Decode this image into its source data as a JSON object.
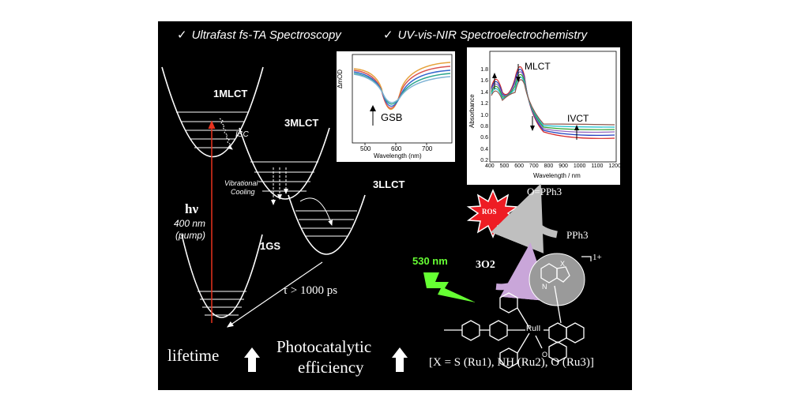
{
  "headers": {
    "check_glyph": "✓",
    "left": "Ultrafast fs-TA Spectroscopy",
    "right": "UV-vis-NIR Spectroelectrochemistry"
  },
  "states": {
    "s1": "1MLCT",
    "t1": "3MLCT",
    "t2": "3LLCT",
    "gs": "1GS"
  },
  "annotations": {
    "isc": "ISC",
    "vib": "Vibrational",
    "cooling": "Cooling",
    "hv": "hν",
    "pump1": "400 nm",
    "pump2": "(pump)",
    "tau": "τ > 1000 ps"
  },
  "bottom": {
    "lifetime": "lifetime",
    "photo1": "Photocatalytic",
    "photo2": "efficiency",
    "formula": "[X = S (Ru1), NH (Ru2), O (Ru3)]"
  },
  "ta_plot": {
    "ylabel": "ΔmOD",
    "xlabel": "Wavelength (nm)",
    "ticks": [
      "500",
      "600",
      "700"
    ],
    "gsb": "GSB"
  },
  "sec_plot": {
    "ylabel": "Absorbance",
    "xlabel": "Wavelength / nm",
    "yticks": [
      "1.8",
      "1.6",
      "1.4",
      "1.2",
      "1.0",
      "0.8",
      "0.6",
      "0.4",
      "0.2"
    ],
    "xticks": [
      "400",
      "500",
      "600",
      "700",
      "800",
      "900",
      "1000",
      "1100",
      "1200"
    ],
    "mlct": "MLCT",
    "ivct": "IVCT"
  },
  "photocat": {
    "ros": "ROS",
    "oppph3": "O=PPh3",
    "pph3": "PPh3",
    "o2": "3O2",
    "light": "530 nm",
    "charge": "1+",
    "ru": "RuII",
    "x": "X",
    "n": "N",
    "o": "O"
  },
  "colors": {
    "background": "#000000",
    "foreground": "#ffffff",
    "excitation_arrow": "#e8321e",
    "light_green": "#66ff33",
    "ros_burst": "#ee1c24",
    "o2_arrow": "#c9a6d9",
    "cycle_arrow": "#bfbfbf"
  }
}
